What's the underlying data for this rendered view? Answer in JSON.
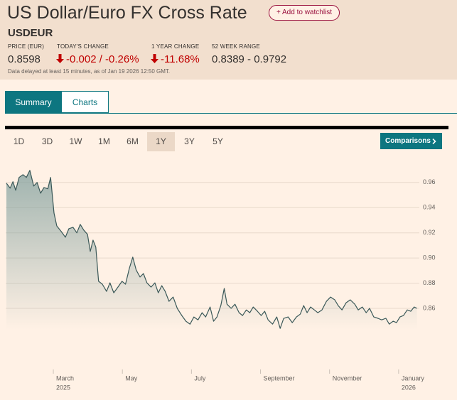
{
  "header": {
    "title": "US Dollar/Euro FX Cross Rate",
    "watchlist_button": "+ Add to watchlist",
    "symbol": "USDEUR",
    "stats": [
      {
        "label": "PRICE (EUR)",
        "value": "0.8598"
      },
      {
        "label": "TODAY'S CHANGE",
        "value": "-0.002 / -0.26%"
      },
      {
        "label": "1 YEAR CHANGE",
        "value": "-11.68%"
      },
      {
        "label": "52 WEEK RANGE",
        "value": "0.8389 - 0.9792"
      }
    ],
    "delay_note": "Data delayed at least 15 minutes, as of Jan 19 2026 12:50 GMT."
  },
  "tabs": [
    "Summary",
    "Charts"
  ],
  "active_tab": 0,
  "ranges": [
    "1D",
    "3D",
    "1W",
    "1M",
    "6M",
    "1Y",
    "3Y",
    "5Y"
  ],
  "active_range": 5,
  "comparisons_button": "Comparisons",
  "chart_data": {
    "type": "area",
    "color": "#3a5858",
    "fill_color": "#7f9e9c",
    "grid": true,
    "x": [
      0.64,
      0.75,
      0.83,
      0.91,
      1.01,
      1.12,
      1.22,
      1.32,
      1.43,
      1.53,
      1.63,
      1.73,
      1.84,
      1.92,
      2.02,
      2.1,
      2.23,
      2.35,
      2.45,
      2.57,
      2.68,
      2.78,
      2.88,
      2.99,
      3.07,
      3.15,
      3.23,
      3.31,
      3.42,
      3.54,
      3.64,
      3.75,
      3.87,
      3.99,
      4.09,
      4.2,
      4.3,
      4.4,
      4.51,
      4.61,
      4.71,
      4.83,
      4.94,
      5.04,
      5.14,
      5.24,
      5.35,
      5.47,
      5.59,
      5.72,
      5.84,
      5.96,
      6.07,
      6.19,
      6.31,
      6.41,
      6.54,
      6.64,
      6.74,
      6.85,
      6.95,
      7.03,
      7.15,
      7.26,
      7.38,
      7.48,
      7.59,
      7.69,
      7.79,
      7.91,
      8.02,
      8.12,
      8.22,
      8.35,
      8.47,
      8.57,
      8.67,
      8.8,
      8.92,
      9.04,
      9.15,
      9.25,
      9.35,
      9.45,
      9.56,
      9.66,
      9.78,
      9.91,
      10.03,
      10.15,
      10.25,
      10.36,
      10.48,
      10.6,
      10.73,
      10.83,
      10.95,
      11.06,
      11.16,
      11.28,
      11.4,
      11.51,
      11.63,
      11.73,
      11.84,
      11.94,
      12.04,
      12.14,
      12.25,
      12.35,
      12.45,
      12.53
    ],
    "values": [
      0.9594,
      0.9555,
      0.9606,
      0.9538,
      0.964,
      0.9662,
      0.964,
      0.9696,
      0.9572,
      0.96,
      0.9515,
      0.956,
      0.955,
      0.964,
      0.9357,
      0.9255,
      0.921,
      0.9165,
      0.9233,
      0.9244,
      0.92,
      0.9267,
      0.9222,
      0.9188,
      0.9052,
      0.9142,
      0.9086,
      0.8815,
      0.8792,
      0.8735,
      0.8803,
      0.8724,
      0.8769,
      0.8815,
      0.8792,
      0.8916,
      0.9007,
      0.8905,
      0.8849,
      0.8877,
      0.8803,
      0.8769,
      0.8803,
      0.8724,
      0.878,
      0.8735,
      0.8656,
      0.869,
      0.86,
      0.8543,
      0.8498,
      0.8475,
      0.8532,
      0.8509,
      0.8566,
      0.8532,
      0.8611,
      0.8498,
      0.8532,
      0.8622,
      0.8758,
      0.8633,
      0.86,
      0.8633,
      0.8566,
      0.8543,
      0.8588,
      0.8566,
      0.8611,
      0.8577,
      0.8543,
      0.8577,
      0.8509,
      0.8475,
      0.8532,
      0.8441,
      0.852,
      0.8532,
      0.8487,
      0.8532,
      0.8554,
      0.8622,
      0.8566,
      0.8611,
      0.8588,
      0.8566,
      0.8588,
      0.8656,
      0.869,
      0.8668,
      0.8622,
      0.8588,
      0.8645,
      0.8668,
      0.8633,
      0.8588,
      0.8611,
      0.8566,
      0.86,
      0.8532,
      0.8521,
      0.8509,
      0.8521,
      0.8475,
      0.8498,
      0.8487,
      0.8532,
      0.8543,
      0.8588,
      0.8577,
      0.8611,
      0.86
    ],
    "xlim": [
      0.62,
      12.6
    ],
    "xticks": [
      {
        "value": 2,
        "label": "March"
      },
      {
        "value": 4,
        "label": "May"
      },
      {
        "value": 6,
        "label": "July"
      },
      {
        "value": 8,
        "label": "September"
      },
      {
        "value": 10,
        "label": "November"
      },
      {
        "value": 12,
        "label": "January"
      }
    ],
    "xtick_years": [
      {
        "value": 2,
        "label": "2025"
      },
      {
        "value": 12,
        "label": "2026"
      }
    ],
    "ylim": [
      0.8115,
      0.974
    ],
    "yticks": [
      0.86,
      0.88,
      {
        "value": 0.9,
        "label": "0.90"
      },
      0.92,
      0.94,
      0.96
    ]
  }
}
